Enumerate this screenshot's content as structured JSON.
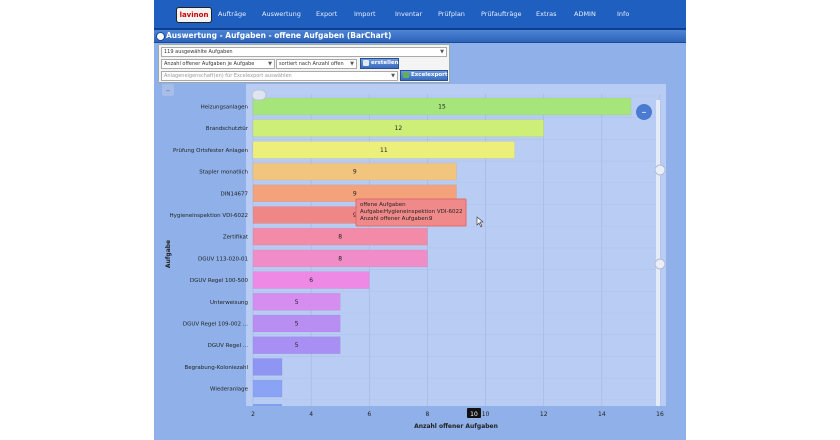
{
  "nav": {
    "logo": "lavinon",
    "items": [
      "Aufträge",
      "Auswertung",
      "Export",
      "Import",
      "Inventar",
      "Prüfplan",
      "Prüfaufträge",
      "Extras",
      "ADMIN",
      "Info"
    ]
  },
  "panel": {
    "title": "Auswertung - Aufgaben - offene Aufgaben (BarChart)"
  },
  "controls": {
    "selection": "119 ausgewählte Aufgaben",
    "measure": "Anzahl offener Aufgaben je Aufgabe",
    "sort": "sortiert nach Anzahl offen",
    "create_label": "erstellen",
    "attributes_placeholder": "Anlageneigenschaft(en) für Excelexport auswählen",
    "excel_label": "Excelexport"
  },
  "colors": {
    "accent": "#1f5fbf",
    "plot_bg": "#b9cdf4",
    "tooltip": "#f08a8a"
  },
  "tooltip": {
    "title": "offene Aufgaben",
    "aufgabe_label": "Aufgabe:",
    "aufgabe_value": "Hygieneinspektion VDI-6022",
    "count_label": "Anzahl offener Aufgaben:",
    "count_value": "9"
  },
  "crosshair_label": "10",
  "chart_data": {
    "type": "bar",
    "orientation": "horizontal",
    "xlabel": "Anzahl offener Aufgaben",
    "ylabel": "Aufgabe",
    "xlim": [
      2,
      16
    ],
    "xticks": [
      2,
      4,
      6,
      8,
      10,
      12,
      14,
      16
    ],
    "grid": true,
    "categories": [
      "Heizungsanlagen",
      "Brandschutztür",
      "Prüfung Ortsfester Anlagen",
      "Stapler monatlich",
      "DIN14677",
      "Hygieneinspektion VDI-6022",
      "Zertifikat",
      "DGUV 113-020-01",
      "DGUV Regel 100-500",
      "Unterweisung",
      "DGUV Regel 109-002 ...",
      "DGUV Regel ...",
      "Begrabung-Koloniezahl",
      "Wiederanlage"
    ],
    "values": [
      15,
      12,
      11,
      9,
      9,
      9,
      8,
      8,
      6,
      5,
      5,
      5,
      3,
      3
    ],
    "bar_labels": [
      "15",
      "12",
      "11",
      "9",
      "9",
      "9",
      "8",
      "8",
      "6",
      "5",
      "5",
      "5",
      "",
      ""
    ],
    "bar_colors": [
      "#a6e57a",
      "#cdef78",
      "#ecf07a",
      "#f2c57e",
      "#f3a27c",
      "#f08787",
      "#f28aa8",
      "#f08dc8",
      "#ee8ae6",
      "#d58ef0",
      "#b98ef2",
      "#a88ff4",
      "#8f95f2",
      "#8aa3f4"
    ]
  }
}
